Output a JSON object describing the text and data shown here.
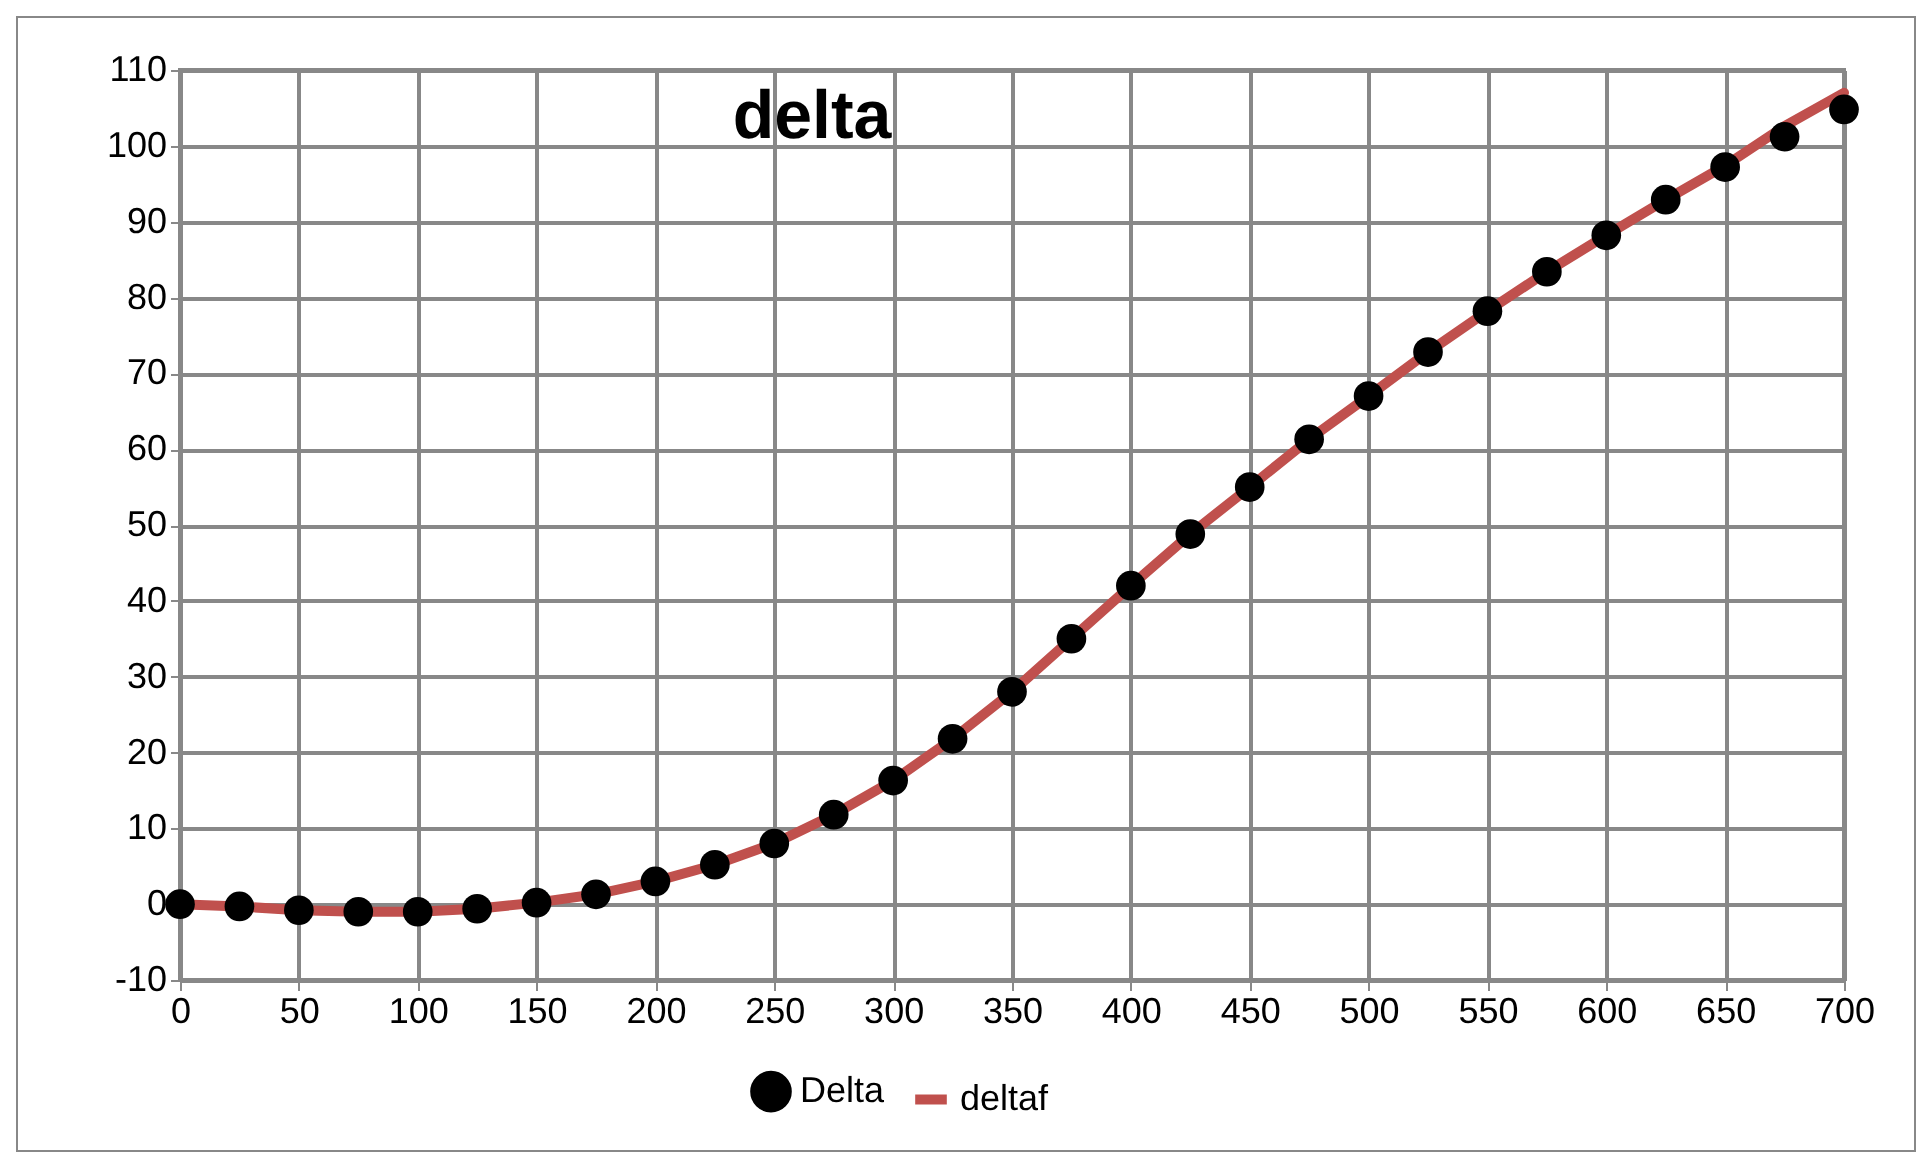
{
  "chart_data": {
    "type": "line",
    "title": "delta",
    "x": [
      0,
      25,
      50,
      75,
      100,
      125,
      150,
      175,
      200,
      225,
      250,
      275,
      300,
      325,
      350,
      375,
      400,
      425,
      450,
      475,
      500,
      525,
      550,
      575,
      600,
      625,
      650,
      675,
      700
    ],
    "series": [
      {
        "name": "Delta",
        "type": "scatter",
        "color": "#000000",
        "marker": "circle",
        "values": [
          0,
          -0.3,
          -0.8,
          -1,
          -1,
          -0.6,
          0.2,
          1.3,
          3,
          5.2,
          8,
          11.8,
          16.3,
          21.8,
          28,
          35,
          42,
          48.8,
          55,
          61.3,
          67,
          72.8,
          78.2,
          83.4,
          88.2,
          92.9,
          97.2,
          101.2,
          104.8
        ]
      },
      {
        "name": "deltaf",
        "color": "#c0504d",
        "line_style": "solid",
        "values": [
          0,
          -0.3,
          -0.8,
          -1,
          -1,
          -0.6,
          0.2,
          1.3,
          3,
          5.2,
          8,
          11.8,
          16.3,
          21.8,
          28,
          35,
          42,
          48.8,
          55,
          61.3,
          67,
          72.8,
          78.2,
          83.4,
          88.2,
          92.9,
          97.4,
          102.6,
          107
        ]
      }
    ],
    "xlim": [
      0,
      700
    ],
    "xticks": [
      0,
      50,
      100,
      150,
      200,
      250,
      300,
      350,
      400,
      450,
      500,
      550,
      600,
      650,
      700
    ],
    "ylim": [
      -10,
      110
    ],
    "yticks": [
      -10,
      0,
      10,
      20,
      30,
      40,
      50,
      60,
      70,
      80,
      90,
      100,
      110
    ],
    "grid": true,
    "legend": "bottom"
  }
}
